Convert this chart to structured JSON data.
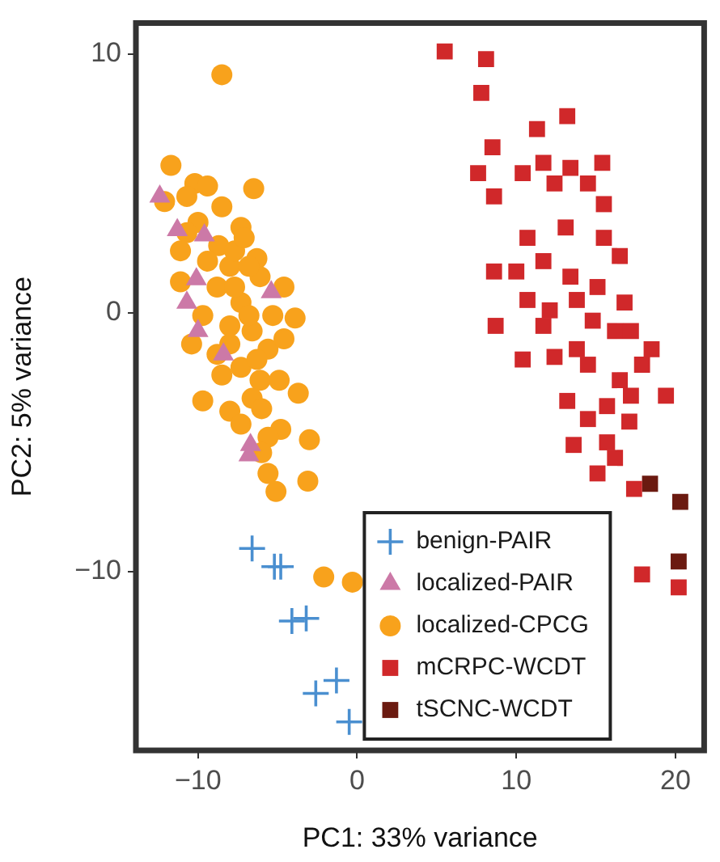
{
  "chart_data": {
    "type": "scatter",
    "xlabel": "PC1: 33% variance",
    "ylabel": "PC2: 5% variance",
    "xlim": [
      -13.9,
      21.8
    ],
    "ylim": [
      -16.9,
      11.2
    ],
    "xticks": [
      {
        "value": -10,
        "label": "−10"
      },
      0,
      10,
      20
    ],
    "yticks": [
      {
        "value": -10,
        "label": "−10"
      },
      0,
      10
    ],
    "grid": false,
    "legend": "bottom right",
    "series": [
      {
        "name": "benign-PAIR",
        "color": "#4a8fd0",
        "marker": "cross",
        "x": [
          -6.6,
          -5.2,
          -4.8,
          -4.1,
          -3.2,
          -2.6,
          -1.3,
          -0.5
        ],
        "values": [
          -9.1,
          -9.8,
          -9.8,
          -11.9,
          -11.8,
          -14.7,
          -14.2,
          -15.8
        ]
      },
      {
        "name": "localized-PAIR",
        "color": "#cc79a7",
        "marker": "triangle",
        "x": [
          -12.4,
          -11.3,
          -9.6,
          -10.1,
          -10.7,
          -10.0,
          -8.4,
          -5.4,
          -6.7,
          -6.8
        ],
        "values": [
          4.5,
          3.2,
          3.0,
          1.3,
          0.4,
          -0.7,
          -1.6,
          0.8,
          -5.1,
          -5.5
        ]
      },
      {
        "name": "localized-CPCG",
        "color": "#f8a21c",
        "marker": "circle",
        "x": [
          -8.5,
          -11.7,
          -6.5,
          -10.2,
          -9.4,
          -12.1,
          -10.7,
          -8.5,
          -7.3,
          -6.3,
          -11.1,
          -8.7,
          -8.0,
          -6.1,
          -4.6,
          -3.9,
          -5.3,
          -11.1,
          -8.8,
          -7.3,
          -9.7,
          -8.0,
          -6.6,
          -5.6,
          -4.6,
          -10.4,
          -8.5,
          -7.3,
          -6.1,
          -4.9,
          -3.7,
          -9.7,
          -8.0,
          -6.6,
          -6.0,
          -4.8,
          -3.0,
          -5.6,
          -5.6,
          -5.1,
          -3.1,
          -7.3,
          -6.8,
          -7.7,
          -6.8,
          -7.7,
          -9.4,
          -10.0,
          -10.7,
          -7.1,
          -8.0,
          -8.8,
          -6.3,
          -6.0,
          -2.1,
          -0.3
        ],
        "values": [
          9.2,
          5.7,
          4.8,
          5.0,
          4.9,
          4.3,
          4.5,
          4.1,
          3.3,
          2.1,
          2.4,
          2.6,
          1.8,
          1.4,
          1.0,
          -0.2,
          -0.1,
          1.2,
          1.0,
          0.4,
          -0.1,
          -0.5,
          -0.7,
          -1.4,
          -1.0,
          -1.2,
          -2.4,
          -2.1,
          -2.6,
          -2.6,
          -3.1,
          -3.4,
          -3.8,
          -3.3,
          -3.7,
          -4.5,
          -4.9,
          -4.8,
          -6.2,
          -6.9,
          -6.5,
          -4.3,
          -0.1,
          1.0,
          1.8,
          2.4,
          2.0,
          3.5,
          3.1,
          2.9,
          -1.2,
          -1.6,
          -1.8,
          -5.4,
          -10.2,
          -10.4
        ]
      },
      {
        "name": "mCRPC-WCDT",
        "color": "#d0282a",
        "marker": "square",
        "x": [
          5.5,
          8.1,
          7.8,
          11.3,
          13.2,
          8.5,
          7.6,
          11.7,
          13.4,
          15.4,
          8.6,
          10.4,
          12.4,
          14.5,
          15.5,
          10.7,
          13.1,
          15.5,
          16.5,
          8.6,
          10.0,
          11.7,
          13.4,
          10.7,
          12.1,
          13.8,
          15.1,
          16.8,
          11.7,
          14.8,
          16.2,
          17.2,
          8.7,
          10.4,
          12.4,
          14.5,
          13.8,
          18.5,
          17.9,
          16.5,
          17.2,
          19.4,
          13.2,
          14.5,
          15.7,
          17.1,
          13.6,
          15.7,
          16.2,
          15.1,
          17.4,
          17.9,
          20.2
        ],
        "values": [
          10.1,
          9.8,
          8.5,
          7.1,
          7.6,
          6.4,
          5.4,
          5.8,
          5.6,
          5.8,
          4.5,
          5.4,
          5.0,
          5.0,
          4.2,
          2.9,
          3.3,
          2.9,
          2.2,
          1.6,
          1.6,
          2.0,
          1.4,
          0.5,
          0.1,
          0.5,
          1.0,
          0.4,
          -0.5,
          -0.3,
          -0.7,
          -0.7,
          -0.5,
          -1.8,
          -1.7,
          -2.0,
          -1.4,
          -1.4,
          -2.0,
          -2.6,
          -3.2,
          -3.2,
          -3.4,
          -4.1,
          -3.6,
          -4.2,
          -5.1,
          -5.0,
          -5.6,
          -6.2,
          -6.8,
          -10.1,
          -10.6
        ]
      },
      {
        "name": "tSCNC-WCDT",
        "color": "#6b1a10",
        "marker": "square",
        "x": [
          18.4,
          20.3,
          20.2
        ],
        "values": [
          -6.6,
          -7.3,
          -9.6
        ]
      }
    ]
  }
}
